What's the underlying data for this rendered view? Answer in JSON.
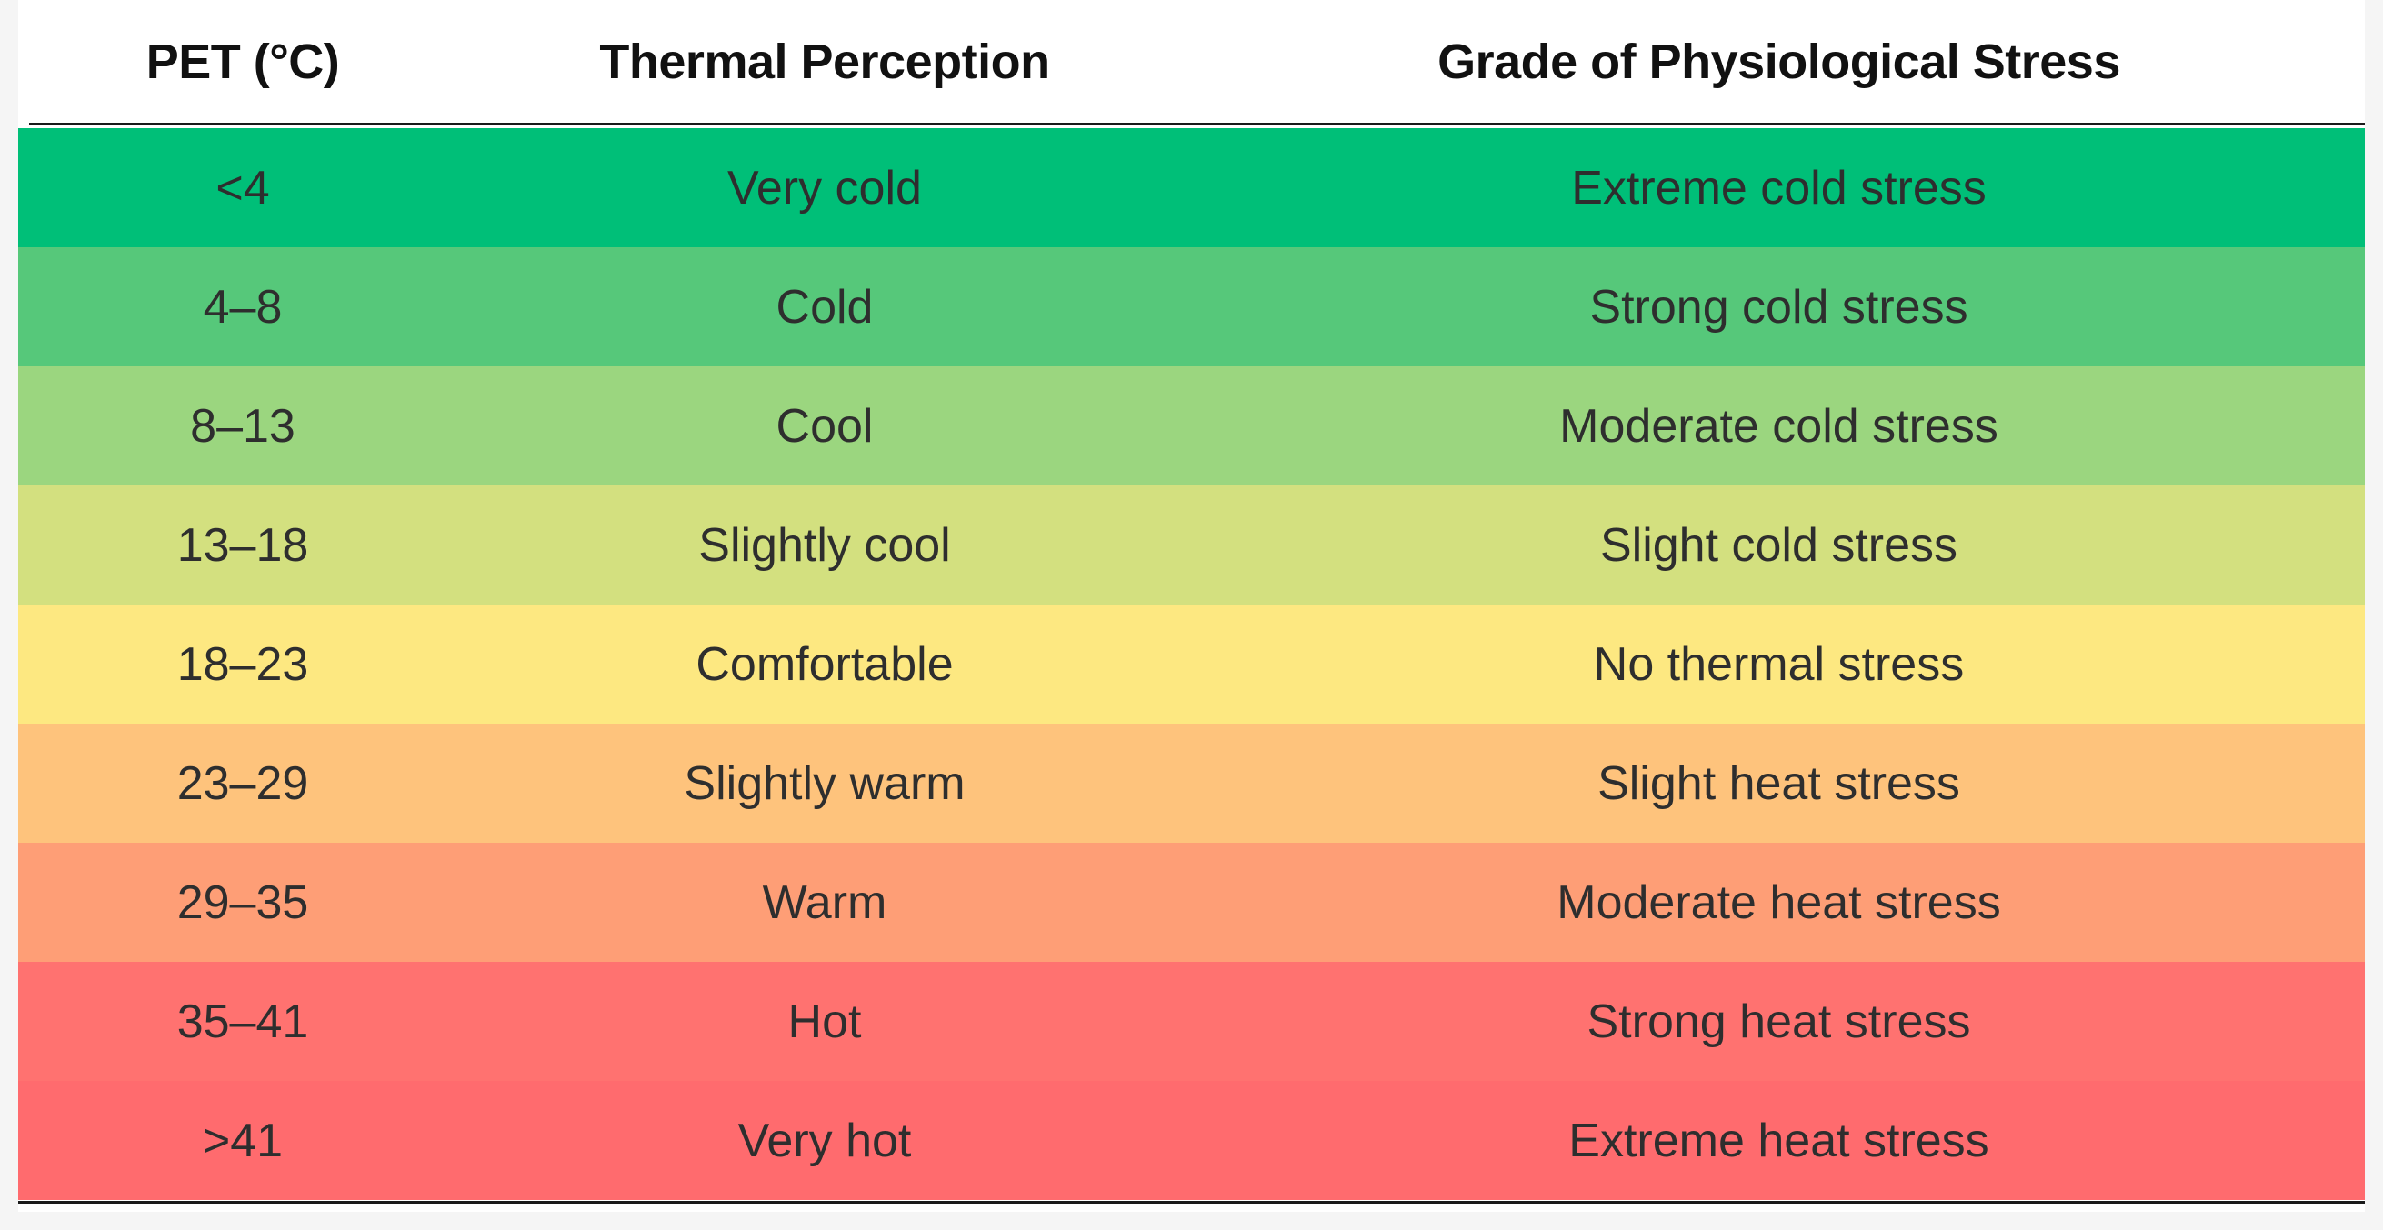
{
  "table": {
    "headers": {
      "pet": "PET (°C)",
      "perception": "Thermal Perception",
      "stress": "Grade of Physiological Stress"
    },
    "rows": [
      {
        "pet": "<4",
        "perception": "Very cold",
        "stress": "Extreme cold stress",
        "color": "#00bf78"
      },
      {
        "pet": "4–8",
        "perception": "Cold",
        "stress": "Strong cold stress",
        "color": "#56c87a"
      },
      {
        "pet": "8–13",
        "perception": "Cool",
        "stress": "Moderate cold stress",
        "color": "#9bd67f"
      },
      {
        "pet": "13–18",
        "perception": "Slightly cool",
        "stress": "Slight cold stress",
        "color": "#d3e07f"
      },
      {
        "pet": "18–23",
        "perception": "Comfortable",
        "stress": "No thermal stress",
        "color": "#fde881"
      },
      {
        "pet": "23–29",
        "perception": "Slightly warm",
        "stress": "Slight heat stress",
        "color": "#fec37c"
      },
      {
        "pet": "29–35",
        "perception": "Warm",
        "stress": "Moderate heat stress",
        "color": "#fe9e76"
      },
      {
        "pet": "35–41",
        "perception": "Hot",
        "stress": "Strong heat stress",
        "color": "#ff7270"
      },
      {
        "pet": ">41",
        "perception": "Very hot",
        "stress": "Extreme heat stress",
        "color": "#ff6b6e"
      }
    ]
  }
}
